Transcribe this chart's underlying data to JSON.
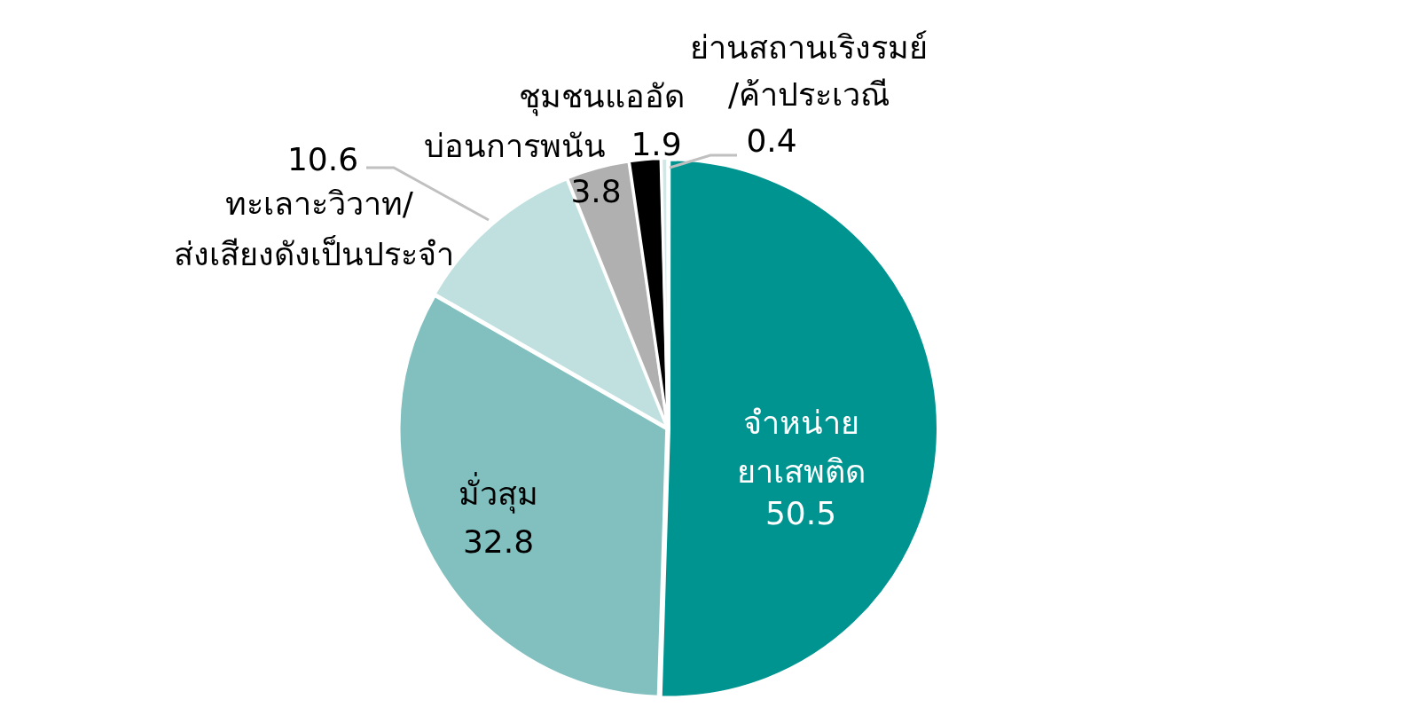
{
  "chart_data": {
    "type": "pie",
    "categories": [
      "จำหน่าย\nยาเสพติด",
      "มั่วสุม",
      "ทะเลาะวิวาท/\nส่งเสียงดังเป็นประจำ",
      "ชุมชนแออัด",
      "บ่อนการพนัน",
      "ย่านสถานเริงรมย์\n/ค้าประเวณี"
    ],
    "values": [
      50.5,
      32.8,
      10.6,
      3.8,
      1.9,
      0.4
    ],
    "colors": [
      "#009490",
      "#82c0c0",
      "#c0e0e0",
      "#b0b0b0",
      "#000000",
      "#d2e6e6"
    ],
    "data_labels": true,
    "legend": false
  }
}
